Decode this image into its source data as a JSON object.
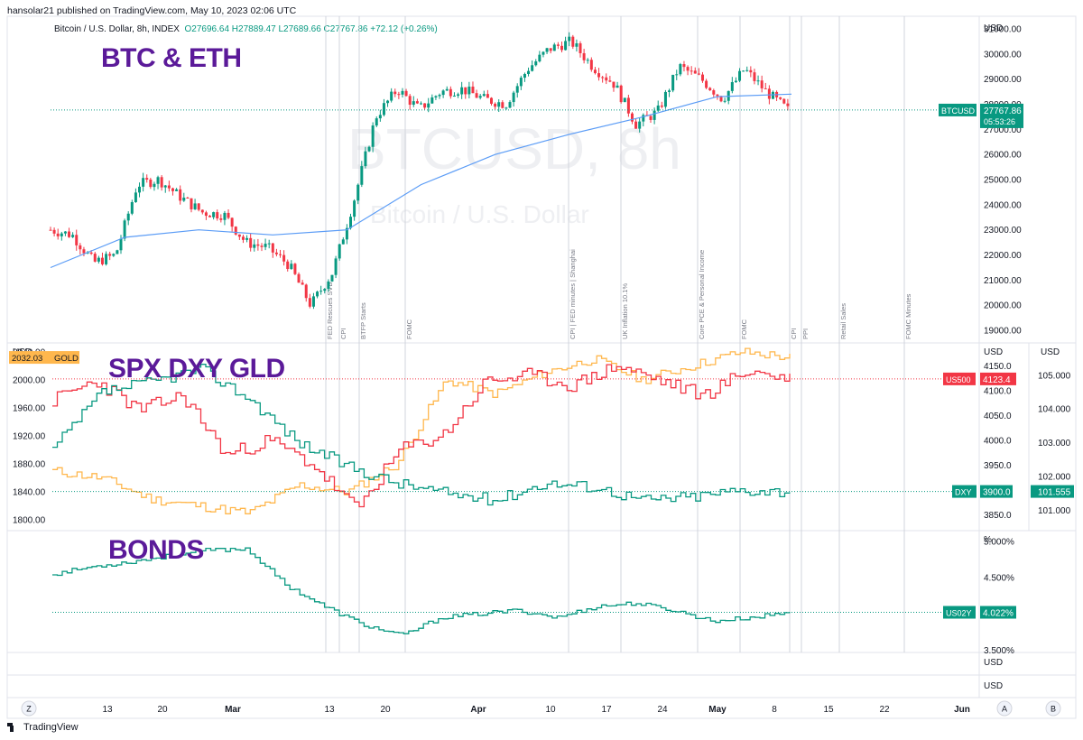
{
  "header": {
    "published": "hansolar21 published on TradingView.com, May 10, 2023 02:06 UTC",
    "symbol": "Bitcoin / U.S. Dollar, 8h, INDEX",
    "ohlc": "O27696.64  H27889.47  L27689.66  C27767.86  +72.12 (+0.26%)"
  },
  "watermark": {
    "symbol": "BTCUSD, 8h",
    "name": "Bitcoin / U.S. Dollar"
  },
  "footer": {
    "brand": "TradingView"
  },
  "colors": {
    "up": "#089981",
    "down": "#f23645",
    "sma": "#5b9cf6",
    "spx": "#f23645",
    "dxy": "#089981",
    "gold": "#ffb74d",
    "bonds": "#089981",
    "label": "#5b1a99"
  },
  "chart_data": [
    {
      "type": "candlestick",
      "title": "BTC & ETH",
      "series": [
        {
          "name": "BTCUSD",
          "ohlc_close_approx": [
            23000,
            22800,
            21700,
            22000,
            24800,
            25000,
            24300,
            23700,
            23600,
            22500,
            22300,
            21600,
            20000,
            21300,
            24200,
            27500,
            28600,
            27800,
            28500,
            28600,
            28200,
            28000,
            29400,
            30200,
            30500,
            29500,
            28800,
            27200,
            27700,
            29500,
            29000,
            28200,
            29400,
            28500,
            27768
          ]
        },
        {
          "name": "MA",
          "ohlc_close_approx": [
            21500,
            22700,
            23000,
            22800,
            23000,
            24800,
            26000,
            26800,
            27500,
            28300,
            28400
          ]
        }
      ],
      "ylabel": "USD",
      "yticks": [
        "31000.00",
        "30000.00",
        "29000.00",
        "28000.00",
        "27000.00",
        "26000.00",
        "25000.00",
        "24000.00",
        "23000.00",
        "22000.00",
        "21000.00",
        "20000.00",
        "19000.00"
      ],
      "ylim": [
        18500,
        31500
      ],
      "last_value": {
        "name": "BTCUSD",
        "value": "27767.86",
        "countdown": "05:53:26"
      },
      "events": [
        "FED Rescues SVB",
        "CPI",
        "BTFP Starts",
        "FOMC",
        "CPI | FED minutes | Shanghai",
        "UK Inflation 10.1%",
        "Core PCE & Personal Income",
        "FOMC",
        "CPI",
        "PPI",
        "Retail Sales",
        "FOMC Minutes"
      ]
    },
    {
      "type": "line",
      "title": "SPX DXY GLD",
      "series": [
        {
          "name": "US500",
          "values": [
            4080,
            4120,
            4060,
            4090,
            3970,
            4000,
            3950,
            3860,
            3980,
            4010,
            4120,
            4130,
            4110,
            4150,
            4120,
            4090,
            4140,
            4123.4
          ]
        },
        {
          "name": "DXY",
          "values": [
            102.8,
            104.5,
            104.8,
            105.2,
            104.3,
            103.0,
            102.3,
            101.8,
            101.5,
            101.3,
            101.8,
            101.7,
            101.3,
            101.4,
            101.6,
            101.555
          ]
        },
        {
          "name": "GOLD",
          "values": [
            1870,
            1860,
            1830,
            1820,
            1810,
            1850,
            1840,
            1880,
            2000,
            1980,
            2010,
            2030,
            2000,
            2020,
            2040,
            2032.03
          ]
        }
      ],
      "left_ylabel": "USD",
      "left_ticks": [
        "2040.00",
        "2000.00",
        "1960.00",
        "1920.00",
        "1880.00",
        "1840.00",
        "1800.00"
      ],
      "right_ylabel": "USD",
      "right_ticks_spx": [
        "4150.0",
        "4100.0",
        "4050.0",
        "4000.0",
        "3950.0",
        "3900.0",
        "3850.0"
      ],
      "right_ticks_dxy": [
        "105.000",
        "104.000",
        "103.000",
        "102.000",
        "101.000"
      ],
      "last_values": [
        {
          "name": "US500",
          "value": "4123.4"
        },
        {
          "name": "DXY",
          "value": "3900.0"
        },
        {
          "name": "DXY",
          "value": "101.555"
        },
        {
          "name": "GOLD",
          "value": "2032.03"
        }
      ]
    },
    {
      "type": "line",
      "title": "BONDS",
      "series": [
        {
          "name": "US02Y",
          "values": [
            4.55,
            4.65,
            4.72,
            4.8,
            4.88,
            4.9,
            4.4,
            4.1,
            3.85,
            3.7,
            3.95,
            4.0,
            4.05,
            3.95,
            4.1,
            4.15,
            4.05,
            3.9,
            3.95,
            4.022
          ]
        }
      ],
      "ylabel": "%",
      "yticks": [
        "5.000%",
        "4.500%",
        "4.000%",
        "3.500%"
      ],
      "ylim": [
        3.5,
        5.0
      ],
      "last_value": {
        "name": "US02Y",
        "value": "4.022%"
      }
    }
  ],
  "extra_panes": {
    "labels": [
      "USD",
      "USD"
    ]
  },
  "time_axis": {
    "ticks": [
      "13",
      "20",
      "Mar",
      "13",
      "20",
      "Apr",
      "10",
      "17",
      "24",
      "May",
      "8",
      "15",
      "22",
      "Jun"
    ],
    "buttons": [
      "Z",
      "A",
      "B"
    ]
  }
}
